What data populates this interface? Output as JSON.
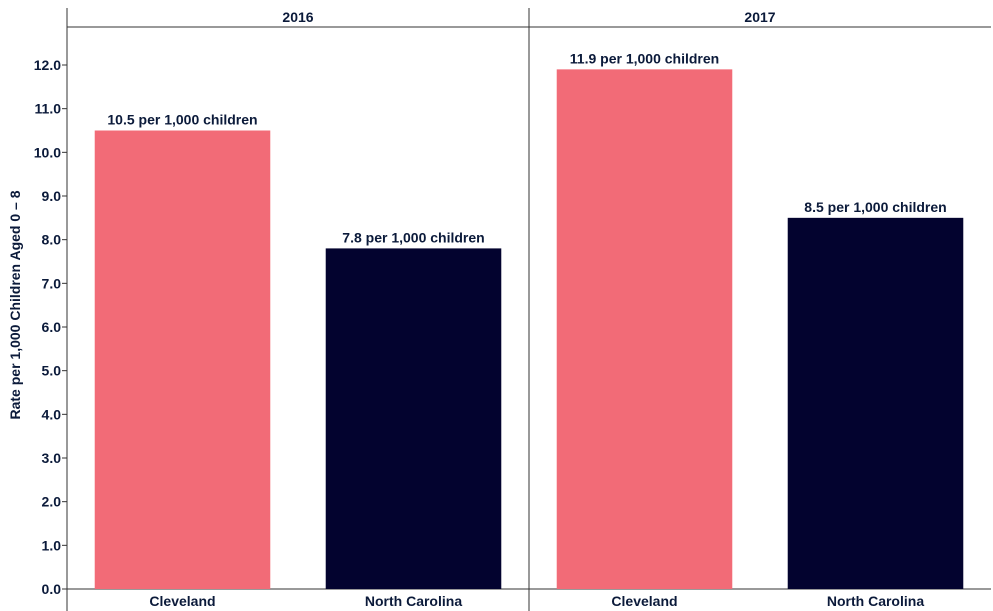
{
  "chart_data": {
    "type": "bar",
    "ylabel": "Rate per 1,000 Children Aged 0 – 8",
    "ylim": [
      0,
      12.9
    ],
    "yticks": [
      "0.0",
      "1.0",
      "2.0",
      "3.0",
      "4.0",
      "5.0",
      "6.0",
      "7.0",
      "8.0",
      "9.0",
      "10.0",
      "11.0",
      "12.0"
    ],
    "grid": false,
    "colors": {
      "Cleveland": "#f26b77",
      "North Carolina": "#03032f"
    },
    "panels": [
      {
        "title": "2016",
        "categories": [
          "Cleveland",
          "North Carolina"
        ],
        "values": [
          10.5,
          7.8
        ],
        "labels": [
          "10.5 per 1,000 children",
          "7.8 per 1,000 children"
        ]
      },
      {
        "title": "2017",
        "categories": [
          "Cleveland",
          "North Carolina"
        ],
        "values": [
          11.9,
          8.5
        ],
        "labels": [
          "11.9 per 1,000 children",
          "8.5 per 1,000 children"
        ]
      }
    ]
  }
}
